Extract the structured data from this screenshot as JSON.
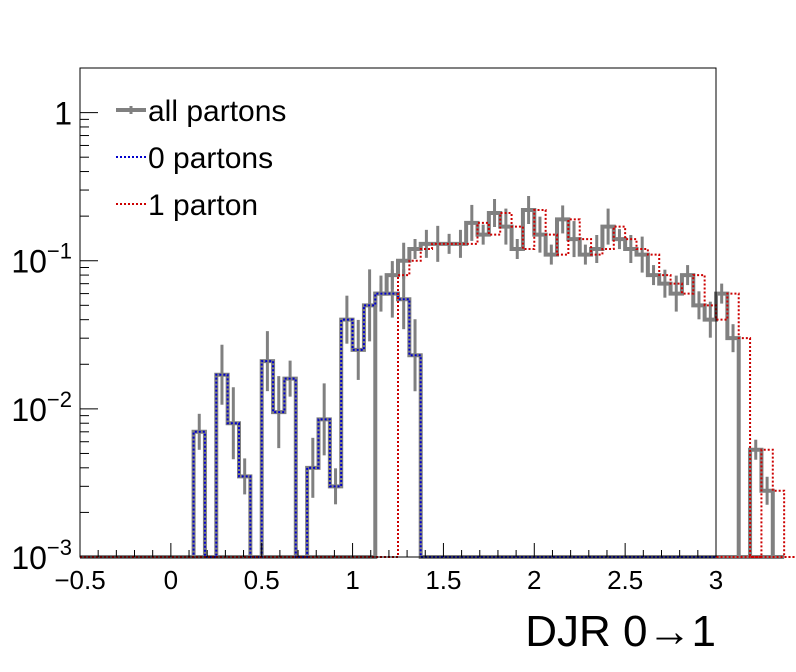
{
  "chart_data": {
    "type": "histogram",
    "xlabel": "DJR 0→1",
    "x_range": [
      -0.5,
      3.0
    ],
    "y_range": [
      0.001,
      2.0
    ],
    "y_scale": "log",
    "bin_width": 0.0625,
    "grid": false,
    "legend_position": "top-left",
    "x_ticks": [
      {
        "value": -0.5,
        "label": "−0.5"
      },
      {
        "value": 0,
        "label": "0"
      },
      {
        "value": 0.5,
        "label": "0.5"
      },
      {
        "value": 1,
        "label": "1"
      },
      {
        "value": 1.5,
        "label": "1.5"
      },
      {
        "value": 2,
        "label": "2"
      },
      {
        "value": 2.5,
        "label": "2.5"
      },
      {
        "value": 3,
        "label": "3"
      }
    ],
    "y_ticks": [
      {
        "value": 1,
        "base": "1",
        "exp": ""
      },
      {
        "value": 0.1,
        "base": "10",
        "exp": "−1"
      },
      {
        "value": 0.01,
        "base": "10",
        "exp": "−2"
      },
      {
        "value": 0.001,
        "base": "10",
        "exp": "−3"
      }
    ],
    "series": [
      {
        "name": "all partons",
        "color": "#808080",
        "style": "solid",
        "x_start": 1.125,
        "values": [
          0.06,
          0.08,
          0.1,
          0.12,
          0.13,
          0.13,
          0.13,
          0.13,
          0.18,
          0.15,
          0.21,
          0.17,
          0.12,
          0.22,
          0.15,
          0.11,
          0.19,
          0.14,
          0.11,
          0.12,
          0.17,
          0.14,
          0.12,
          0.11,
          0.08,
          0.07,
          0.06,
          0.08,
          0.05,
          0.04,
          0.06,
          0.03,
          0.001,
          0.0053,
          0.0028,
          0.001
        ]
      },
      {
        "name": "0 partons",
        "color": "#0000cc",
        "style": "dotted",
        "x_start": 0.125,
        "values": [
          0.007,
          0.001,
          0.017,
          0.008,
          0.0035,
          0.001,
          0.021,
          0.0095,
          0.016,
          0.001,
          0.004,
          0.0085,
          0.003,
          0.04,
          0.025,
          0.05,
          0.06,
          0.06,
          0.055,
          0.023
        ]
      },
      {
        "name": "1 parton",
        "color": "#cc0000",
        "style": "dotted",
        "x_start": 1.25,
        "values": [
          0.08,
          0.1,
          0.12,
          0.13,
          0.13,
          0.13,
          0.13,
          0.18,
          0.15,
          0.21,
          0.17,
          0.12,
          0.22,
          0.15,
          0.11,
          0.19,
          0.14,
          0.11,
          0.12,
          0.17,
          0.14,
          0.12,
          0.11,
          0.08,
          0.07,
          0.06,
          0.08,
          0.05,
          0.04,
          0.06,
          0.03,
          0.001,
          0.0053,
          0.0028,
          0.001
        ]
      }
    ]
  }
}
